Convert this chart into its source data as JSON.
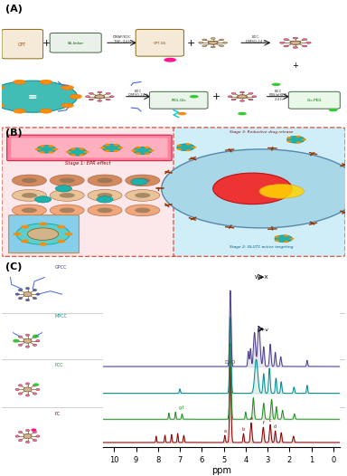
{
  "panel_labels": [
    "(A)",
    "(B)",
    "(C)"
  ],
  "panel_A_bg": "#ffffff",
  "panel_B_left_bg": "#f9c0c8",
  "panel_B_right_bg": "#c8e8f0",
  "panel_B_border": "#e07060",
  "panel_C_bg": "#ffffff",
  "nmr_colors": [
    "#8B0000",
    "#228B22",
    "#008B8B",
    "#483D8B"
  ],
  "nmr_labels": [
    "PC",
    "PCC",
    "MPCC",
    "GPCC"
  ],
  "ppm_label": "ppm",
  "D2O_label": "D₂O",
  "fig_bg": "#ffffff",
  "label_fontsize": 8
}
